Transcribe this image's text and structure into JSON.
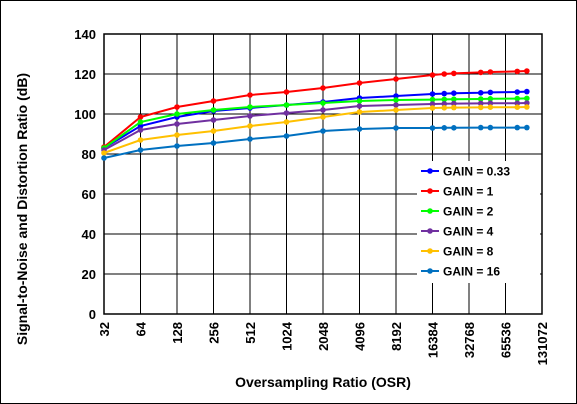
{
  "chart_data": {
    "type": "line",
    "title": "",
    "xlabel": "Oversampling Ratio (OSR)",
    "ylabel": "Signal-to-Noise and Distortion Ratio (dB)",
    "x_scale": "log2",
    "xlim": [
      32,
      131072
    ],
    "ylim": [
      0,
      140
    ],
    "x_ticks": [
      "32",
      "64",
      "128",
      "256",
      "512",
      "1024",
      "2048",
      "4096",
      "8192",
      "16384",
      "32768",
      "65536",
      "131072"
    ],
    "y_ticks": [
      "0",
      "20",
      "40",
      "60",
      "80",
      "100",
      "120",
      "140"
    ],
    "grid": true,
    "legend_position": "right",
    "x": [
      32,
      64,
      128,
      256,
      512,
      1024,
      2048,
      4096,
      8192,
      16384,
      20480,
      24576,
      40960,
      49152,
      81920,
      98304
    ],
    "series": [
      {
        "name": "GAIN = 0.33",
        "color": "#0000FF",
        "values": [
          83,
          94,
          98.5,
          101.5,
          103,
          104.5,
          106,
          108,
          109,
          110,
          110.2,
          110.4,
          110.6,
          110.8,
          111,
          111.2
        ]
      },
      {
        "name": "GAIN = 1",
        "color": "#FF0000",
        "values": [
          83.5,
          98.5,
          103.5,
          106.5,
          109.5,
          111,
          113,
          115.5,
          117.5,
          119.5,
          120,
          120.3,
          120.8,
          121,
          121.3,
          121.5
        ]
      },
      {
        "name": "GAIN = 2",
        "color": "#00FF00",
        "values": [
          83,
          96,
          100,
          102,
          103.5,
          104.5,
          105.5,
          106.5,
          107,
          107.2,
          107.3,
          107.4,
          107.5,
          107.6,
          107.7,
          107.8
        ]
      },
      {
        "name": "GAIN = 4",
        "color": "#7030A0",
        "values": [
          82,
          92,
          95,
          97,
          99,
          100.5,
          102,
          104,
          104.5,
          105,
          105.1,
          105.2,
          105.3,
          105.4,
          105.4,
          105.5
        ]
      },
      {
        "name": "GAIN = 8",
        "color": "#FFC000",
        "values": [
          80.5,
          87,
          89.5,
          91.5,
          94,
          96,
          98.5,
          101,
          102,
          103,
          103.1,
          103.2,
          103.3,
          103.4,
          103.4,
          103.5
        ]
      },
      {
        "name": "GAIN = 16",
        "color": "#0070C0",
        "values": [
          78,
          82,
          84,
          85.5,
          87.5,
          89,
          91.5,
          92.5,
          93,
          93,
          93.1,
          93.1,
          93.2,
          93.2,
          93.2,
          93.2
        ]
      }
    ]
  }
}
